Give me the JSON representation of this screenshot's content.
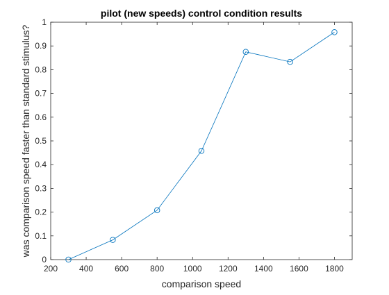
{
  "chart_data": {
    "type": "line",
    "title": "pilot (new speeds) control condition results",
    "xlabel": "comparison speed",
    "ylabel": "was comparison speed faster than standard stimulus?",
    "xlim": [
      200,
      1900
    ],
    "ylim": [
      0,
      1
    ],
    "x_ticks": [
      200,
      400,
      600,
      800,
      1000,
      1200,
      1400,
      1600,
      1800
    ],
    "y_ticks": [
      0,
      0.1,
      0.2,
      0.3,
      0.4,
      0.5,
      0.6,
      0.7,
      0.8,
      0.9,
      1
    ],
    "grid": false,
    "series": [
      {
        "marker": "circle",
        "color": "#0072BD",
        "x": [
          300,
          550,
          800,
          1050,
          1300,
          1550,
          1800
        ],
        "y": [
          0.0,
          0.083,
          0.208,
          0.458,
          0.875,
          0.833,
          0.958
        ]
      }
    ]
  }
}
